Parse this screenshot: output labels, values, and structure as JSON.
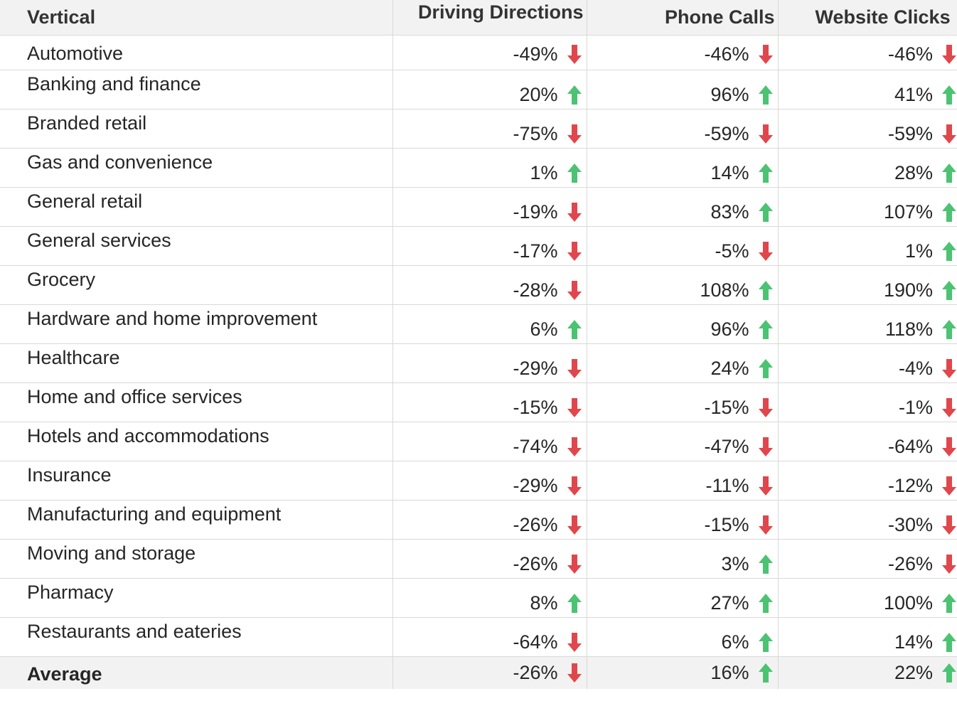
{
  "table": {
    "headers": [
      "Vertical",
      "Driving Directions",
      "Phone Calls",
      "Website Clicks"
    ],
    "rows": [
      {
        "vertical": "Automotive",
        "cells": [
          {
            "value": "-49%",
            "trend": "down"
          },
          {
            "value": "-46%",
            "trend": "down"
          },
          {
            "value": "-46%",
            "trend": "down"
          }
        ]
      },
      {
        "vertical": "Banking and finance",
        "cells": [
          {
            "value": "20%",
            "trend": "up"
          },
          {
            "value": "96%",
            "trend": "up"
          },
          {
            "value": "41%",
            "trend": "up"
          }
        ]
      },
      {
        "vertical": "Branded retail",
        "cells": [
          {
            "value": "-75%",
            "trend": "down"
          },
          {
            "value": "-59%",
            "trend": "down"
          },
          {
            "value": "-59%",
            "trend": "down"
          }
        ]
      },
      {
        "vertical": "Gas and convenience",
        "cells": [
          {
            "value": "1%",
            "trend": "up"
          },
          {
            "value": "14%",
            "trend": "up"
          },
          {
            "value": "28%",
            "trend": "up"
          }
        ]
      },
      {
        "vertical": "General retail",
        "cells": [
          {
            "value": "-19%",
            "trend": "down"
          },
          {
            "value": "83%",
            "trend": "up"
          },
          {
            "value": "107%",
            "trend": "up"
          }
        ]
      },
      {
        "vertical": "General services",
        "cells": [
          {
            "value": "-17%",
            "trend": "down"
          },
          {
            "value": "-5%",
            "trend": "down"
          },
          {
            "value": "1%",
            "trend": "up"
          }
        ]
      },
      {
        "vertical": "Grocery",
        "cells": [
          {
            "value": "-28%",
            "trend": "down"
          },
          {
            "value": "108%",
            "trend": "up"
          },
          {
            "value": "190%",
            "trend": "up"
          }
        ]
      },
      {
        "vertical": "Hardware and home improvement",
        "cells": [
          {
            "value": "6%",
            "trend": "up"
          },
          {
            "value": "96%",
            "trend": "up"
          },
          {
            "value": "118%",
            "trend": "up"
          }
        ]
      },
      {
        "vertical": "Healthcare",
        "cells": [
          {
            "value": "-29%",
            "trend": "down"
          },
          {
            "value": "24%",
            "trend": "up"
          },
          {
            "value": "-4%",
            "trend": "down"
          }
        ]
      },
      {
        "vertical": "Home and office services",
        "cells": [
          {
            "value": "-15%",
            "trend": "down"
          },
          {
            "value": "-15%",
            "trend": "down"
          },
          {
            "value": "-1%",
            "trend": "down"
          }
        ]
      },
      {
        "vertical": "Hotels and accommodations",
        "cells": [
          {
            "value": "-74%",
            "trend": "down"
          },
          {
            "value": "-47%",
            "trend": "down"
          },
          {
            "value": "-64%",
            "trend": "down"
          }
        ]
      },
      {
        "vertical": "Insurance",
        "cells": [
          {
            "value": "-29%",
            "trend": "down"
          },
          {
            "value": "-11%",
            "trend": "down"
          },
          {
            "value": "-12%",
            "trend": "down"
          }
        ]
      },
      {
        "vertical": "Manufacturing and equipment",
        "cells": [
          {
            "value": "-26%",
            "trend": "down"
          },
          {
            "value": "-15%",
            "trend": "down"
          },
          {
            "value": "-30%",
            "trend": "down"
          }
        ]
      },
      {
        "vertical": "Moving and storage",
        "cells": [
          {
            "value": "-26%",
            "trend": "down"
          },
          {
            "value": "3%",
            "trend": "up"
          },
          {
            "value": "-26%",
            "trend": "down"
          }
        ]
      },
      {
        "vertical": "Pharmacy",
        "cells": [
          {
            "value": "8%",
            "trend": "up"
          },
          {
            "value": "27%",
            "trend": "up"
          },
          {
            "value": "100%",
            "trend": "up"
          }
        ]
      },
      {
        "vertical": "Restaurants and eateries",
        "cells": [
          {
            "value": "-64%",
            "trend": "down"
          },
          {
            "value": "6%",
            "trend": "up"
          },
          {
            "value": "14%",
            "trend": "up"
          }
        ]
      }
    ],
    "average": {
      "vertical": "Average",
      "cells": [
        {
          "value": "-26%",
          "trend": "down"
        },
        {
          "value": "16%",
          "trend": "up"
        },
        {
          "value": "22%",
          "trend": "up"
        }
      ]
    }
  },
  "icons": {
    "up": "arrow-up-icon",
    "down": "arrow-down-icon"
  },
  "colors": {
    "up": "#4cc372",
    "down": "#e0474c",
    "header_bg": "#f2f2f2",
    "grid": "#d9d9d9"
  }
}
